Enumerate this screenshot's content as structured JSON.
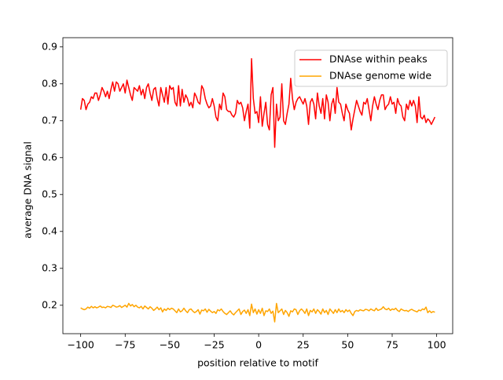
{
  "chart_data": {
    "type": "line",
    "xlabel": "position relative to motif",
    "ylabel": "average DNA signal",
    "x": [
      -100,
      -99,
      -98,
      -97,
      -96,
      -95,
      -94,
      -93,
      -92,
      -91,
      -90,
      -89,
      -88,
      -87,
      -86,
      -85,
      -84,
      -83,
      -82,
      -81,
      -80,
      -79,
      -78,
      -77,
      -76,
      -75,
      -74,
      -73,
      -72,
      -71,
      -70,
      -69,
      -68,
      -67,
      -66,
      -65,
      -64,
      -63,
      -62,
      -61,
      -60,
      -59,
      -58,
      -57,
      -56,
      -55,
      -54,
      -53,
      -52,
      -51,
      -50,
      -49,
      -48,
      -47,
      -46,
      -45,
      -44,
      -43,
      -42,
      -41,
      -40,
      -39,
      -38,
      -37,
      -36,
      -35,
      -34,
      -33,
      -32,
      -31,
      -30,
      -29,
      -28,
      -27,
      -26,
      -25,
      -24,
      -23,
      -22,
      -21,
      -20,
      -19,
      -18,
      -17,
      -16,
      -15,
      -14,
      -13,
      -12,
      -11,
      -10,
      -9,
      -8,
      -7,
      -6,
      -5,
      -4,
      -3,
      -2,
      -1,
      0,
      1,
      2,
      3,
      4,
      5,
      6,
      7,
      8,
      9,
      10,
      11,
      12,
      13,
      14,
      15,
      16,
      17,
      18,
      19,
      20,
      21,
      22,
      23,
      24,
      25,
      26,
      27,
      28,
      29,
      30,
      31,
      32,
      33,
      34,
      35,
      36,
      37,
      38,
      39,
      40,
      41,
      42,
      43,
      44,
      45,
      46,
      47,
      48,
      49,
      50,
      51,
      52,
      53,
      54,
      55,
      56,
      57,
      58,
      59,
      60,
      61,
      62,
      63,
      64,
      65,
      66,
      67,
      68,
      69,
      70,
      71,
      72,
      73,
      74,
      75,
      76,
      77,
      78,
      79,
      80,
      81,
      82,
      83,
      84,
      85,
      86,
      87,
      88,
      89,
      90,
      91,
      92,
      93,
      94,
      95,
      96,
      97,
      98,
      99
    ],
    "series": [
      {
        "name": "DNAse within peaks",
        "color": "#ff0000",
        "values": [
          0.73,
          0.76,
          0.755,
          0.73,
          0.745,
          0.75,
          0.765,
          0.76,
          0.775,
          0.775,
          0.755,
          0.77,
          0.79,
          0.78,
          0.765,
          0.78,
          0.76,
          0.785,
          0.805,
          0.78,
          0.805,
          0.8,
          0.78,
          0.79,
          0.8,
          0.775,
          0.81,
          0.79,
          0.77,
          0.755,
          0.79,
          0.785,
          0.78,
          0.795,
          0.77,
          0.785,
          0.76,
          0.79,
          0.8,
          0.775,
          0.755,
          0.785,
          0.79,
          0.76,
          0.74,
          0.79,
          0.77,
          0.75,
          0.79,
          0.745,
          0.795,
          0.785,
          0.79,
          0.75,
          0.74,
          0.795,
          0.74,
          0.785,
          0.75,
          0.77,
          0.76,
          0.74,
          0.75,
          0.735,
          0.775,
          0.765,
          0.75,
          0.745,
          0.795,
          0.785,
          0.76,
          0.745,
          0.735,
          0.74,
          0.76,
          0.74,
          0.71,
          0.7,
          0.745,
          0.73,
          0.775,
          0.765,
          0.73,
          0.725,
          0.725,
          0.715,
          0.71,
          0.72,
          0.755,
          0.745,
          0.75,
          0.735,
          0.7,
          0.725,
          0.745,
          0.68,
          0.868,
          0.76,
          0.72,
          0.725,
          0.695,
          0.765,
          0.685,
          0.72,
          0.75,
          0.69,
          0.675,
          0.77,
          0.79,
          0.628,
          0.745,
          0.7,
          0.71,
          0.8,
          0.7,
          0.69,
          0.72,
          0.745,
          0.815,
          0.76,
          0.73,
          0.75,
          0.76,
          0.765,
          0.755,
          0.745,
          0.76,
          0.74,
          0.69,
          0.75,
          0.76,
          0.745,
          0.705,
          0.775,
          0.74,
          0.72,
          0.76,
          0.705,
          0.77,
          0.75,
          0.7,
          0.745,
          0.76,
          0.72,
          0.79,
          0.75,
          0.745,
          0.72,
          0.7,
          0.745,
          0.73,
          0.72,
          0.675,
          0.705,
          0.73,
          0.755,
          0.74,
          0.725,
          0.715,
          0.75,
          0.745,
          0.76,
          0.73,
          0.7,
          0.74,
          0.765,
          0.745,
          0.73,
          0.755,
          0.77,
          0.77,
          0.73,
          0.74,
          0.745,
          0.765,
          0.745,
          0.75,
          0.72,
          0.76,
          0.745,
          0.74,
          0.71,
          0.7,
          0.745,
          0.73,
          0.755,
          0.74,
          0.755,
          0.74,
          0.695,
          0.765,
          0.71,
          0.705,
          0.715,
          0.695,
          0.705,
          0.7,
          0.69,
          0.7,
          0.71
        ]
      },
      {
        "name": "DNAse genome wide",
        "color": "#ffa500",
        "values": [
          0.193,
          0.19,
          0.188,
          0.19,
          0.195,
          0.192,
          0.197,
          0.193,
          0.196,
          0.193,
          0.195,
          0.198,
          0.194,
          0.195,
          0.193,
          0.197,
          0.196,
          0.194,
          0.2,
          0.198,
          0.195,
          0.196,
          0.199,
          0.194,
          0.197,
          0.2,
          0.195,
          0.205,
          0.198,
          0.202,
          0.196,
          0.2,
          0.195,
          0.193,
          0.197,
          0.19,
          0.198,
          0.194,
          0.19,
          0.196,
          0.192,
          0.186,
          0.19,
          0.195,
          0.188,
          0.193,
          0.182,
          0.19,
          0.186,
          0.192,
          0.188,
          0.192,
          0.19,
          0.185,
          0.18,
          0.19,
          0.182,
          0.185,
          0.192,
          0.185,
          0.18,
          0.188,
          0.19,
          0.184,
          0.18,
          0.183,
          0.188,
          0.176,
          0.187,
          0.185,
          0.19,
          0.181,
          0.189,
          0.184,
          0.18,
          0.183,
          0.178,
          0.188,
          0.185,
          0.19,
          0.183,
          0.178,
          0.175,
          0.18,
          0.185,
          0.178,
          0.174,
          0.18,
          0.185,
          0.19,
          0.175,
          0.183,
          0.187,
          0.178,
          0.188,
          0.172,
          0.203,
          0.18,
          0.19,
          0.176,
          0.188,
          0.178,
          0.192,
          0.172,
          0.185,
          0.183,
          0.19,
          0.178,
          0.184,
          0.155,
          0.205,
          0.18,
          0.185,
          0.19,
          0.175,
          0.186,
          0.18,
          0.17,
          0.185,
          0.182,
          0.19,
          0.188,
          0.175,
          0.185,
          0.19,
          0.185,
          0.178,
          0.19,
          0.172,
          0.186,
          0.182,
          0.19,
          0.178,
          0.188,
          0.183,
          0.176,
          0.19,
          0.18,
          0.186,
          0.175,
          0.19,
          0.184,
          0.178,
          0.188,
          0.18,
          0.19,
          0.182,
          0.186,
          0.18,
          0.188,
          0.183,
          0.187,
          0.178,
          0.172,
          0.183,
          0.186,
          0.184,
          0.188,
          0.186,
          0.185,
          0.189,
          0.188,
          0.185,
          0.19,
          0.187,
          0.185,
          0.192,
          0.186,
          0.188,
          0.19,
          0.196,
          0.19,
          0.188,
          0.192,
          0.186,
          0.19,
          0.188,
          0.192,
          0.186,
          0.183,
          0.19,
          0.187,
          0.185,
          0.186,
          0.183,
          0.187,
          0.189,
          0.186,
          0.184,
          0.182,
          0.187,
          0.185,
          0.19,
          0.188,
          0.195,
          0.18,
          0.185,
          0.18,
          0.183,
          0.181
        ]
      }
    ],
    "xlim": [
      -110,
      109
    ],
    "ylim": [
      0.123,
      0.925
    ],
    "xticks": [
      {
        "value": -100,
        "label": "−100"
      },
      {
        "value": -75,
        "label": "−75"
      },
      {
        "value": -50,
        "label": "−50"
      },
      {
        "value": -25,
        "label": "−25"
      },
      0,
      25,
      50,
      75,
      100
    ],
    "yticks": [
      0.2,
      0.3,
      0.4,
      0.5,
      0.6,
      0.7,
      0.8,
      0.9
    ],
    "legend": "upper right"
  }
}
